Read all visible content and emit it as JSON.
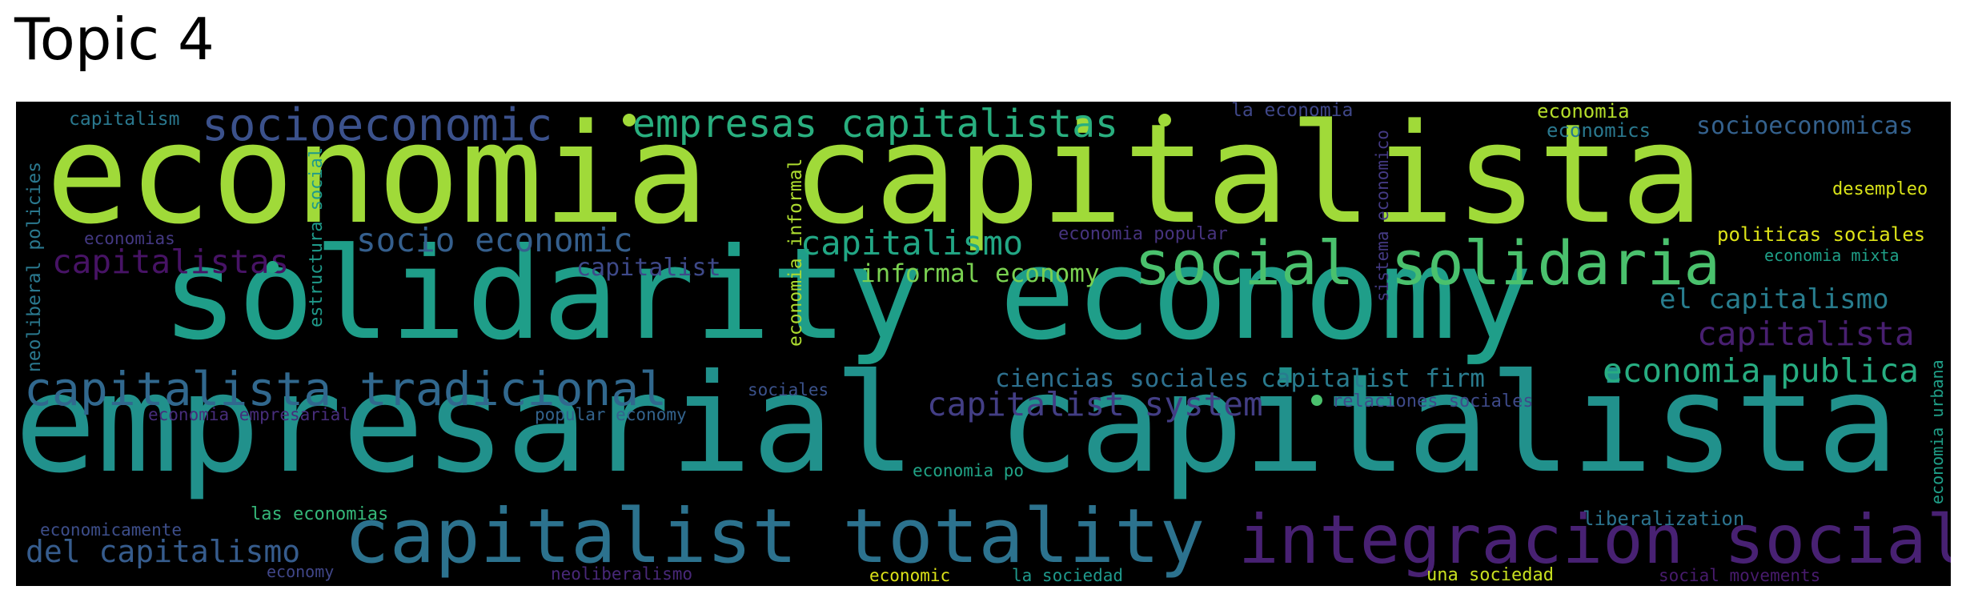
{
  "title": "Topic 4",
  "colors": {
    "page_background": "#ffffff",
    "cloud_background": "#000000",
    "title_text": "#000000"
  },
  "words": [
    {
      "text": "economia capitalista",
      "color": "#a0da39"
    },
    {
      "text": "solidarity economy",
      "color": "#1f9e89"
    },
    {
      "text": "empresarial capitalista",
      "color": "#21918c"
    },
    {
      "text": "capitalist totality",
      "color": "#2c728e"
    },
    {
      "text": "integracion social",
      "color": "#482173"
    },
    {
      "text": "social solidaria",
      "color": "#4ac16d"
    },
    {
      "text": "capitalista tradicional",
      "color": "#31688e"
    },
    {
      "text": "socioeconomic",
      "color": "#3b518b"
    },
    {
      "text": "empresas capitalistas",
      "color": "#29af7f"
    },
    {
      "text": "capitalismo",
      "color": "#22a785"
    },
    {
      "text": "capitalistas",
      "color": "#471365"
    },
    {
      "text": "socio economic",
      "color": "#355f8d"
    },
    {
      "text": "capitalist system",
      "color": "#433e85"
    },
    {
      "text": "economia publica",
      "color": "#27ad81"
    },
    {
      "text": "capitalista",
      "color": "#481f70"
    },
    {
      "text": "el capitalismo",
      "color": "#287d8e"
    },
    {
      "text": "del capitalismo",
      "color": "#365c8d"
    },
    {
      "text": "informal economy",
      "color": "#7ad151"
    },
    {
      "text": "capitalist firm",
      "color": "#297b8e"
    },
    {
      "text": "ciencias sociales",
      "color": "#2d708e"
    },
    {
      "text": "socioeconomicas",
      "color": "#34618d"
    },
    {
      "text": "capitalist",
      "color": "#3e4989"
    },
    {
      "text": "la economia",
      "color": "#3f4788"
    },
    {
      "text": "economia",
      "color": "#b5de2b"
    },
    {
      "text": "economics",
      "color": "#2a788e"
    },
    {
      "text": "desempleo",
      "color": "#d8e219"
    },
    {
      "text": "politicas sociales",
      "color": "#dde318"
    },
    {
      "text": "economia mixta",
      "color": "#1fa088"
    },
    {
      "text": "economia popular",
      "color": "#46337e"
    },
    {
      "text": "capitalism",
      "color": "#2a788e"
    },
    {
      "text": "economias",
      "color": "#443983"
    },
    {
      "text": "economia empresarial",
      "color": "#472d7b"
    },
    {
      "text": "sociales",
      "color": "#3b528b"
    },
    {
      "text": "popular economy",
      "color": "#33638d"
    },
    {
      "text": "relaciones sociales",
      "color": "#3e4a89"
    },
    {
      "text": "economia po",
      "color": "#20a386"
    },
    {
      "text": "economicamente",
      "color": "#3d4e8a"
    },
    {
      "text": "las economias",
      "color": "#35b779"
    },
    {
      "text": "economy",
      "color": "#404688"
    },
    {
      "text": "liberalization",
      "color": "#2c738e"
    },
    {
      "text": "neoliberalismo",
      "color": "#482878"
    },
    {
      "text": "economic",
      "color": "#dde318"
    },
    {
      "text": "la sociedad",
      "color": "#1f988b"
    },
    {
      "text": "una sociedad",
      "color": "#c8e020"
    },
    {
      "text": "social movements",
      "color": "#481b6d"
    },
    {
      "text": "neoliberal policies",
      "color": "#2a788e"
    },
    {
      "text": "estructura social",
      "color": "#1f9a8a"
    },
    {
      "text": "economia informal",
      "color": "#addc30"
    },
    {
      "text": "sistema economico",
      "color": "#443a83"
    },
    {
      "text": "economia urbana",
      "color": "#1f9f88"
    }
  ]
}
